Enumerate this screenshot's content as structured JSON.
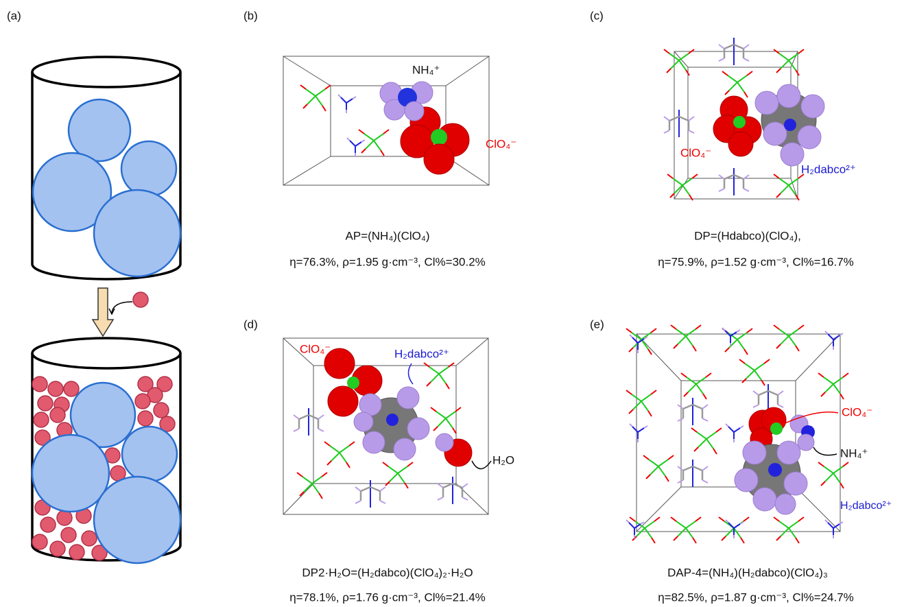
{
  "panels": [
    {
      "label": "(a)"
    },
    {
      "label": "(b)",
      "annotations": [
        "NH₄⁺",
        "ClO₄⁻"
      ],
      "formula": "AP=(NH₄)(ClO₄)",
      "properties": "η=76.3%, ρ=1.95 g·cm⁻³, Cl%=30.2%"
    },
    {
      "label": "(c)",
      "annotations": [
        "ClO₄⁻",
        "H₂dabco²⁺"
      ],
      "formula": "DP=(Hdabco)(ClO₄),",
      "properties": "η=75.9%, ρ=1.52 g·cm⁻³, Cl%=16.7%"
    },
    {
      "label": "(d)",
      "annotations": [
        "ClO₄⁻",
        "H₂dabco²⁺",
        "H₂O"
      ],
      "formula": "DP2·H₂O=(H₂dabco)(ClO₄)₂·H₂O",
      "properties": "η=78.1%, ρ=1.76 g·cm⁻³, Cl%=21.4%"
    },
    {
      "label": "(e)",
      "annotations": [
        "ClO₄⁻",
        "NH₄⁺",
        "H₂dabco²⁺"
      ],
      "formula": "DAP-4=(NH₄)(H₂dabco)(ClO₄)₃",
      "properties": "η=82.5%, ρ=1.87 g·cm⁻³, Cl%=24.7%"
    }
  ]
}
